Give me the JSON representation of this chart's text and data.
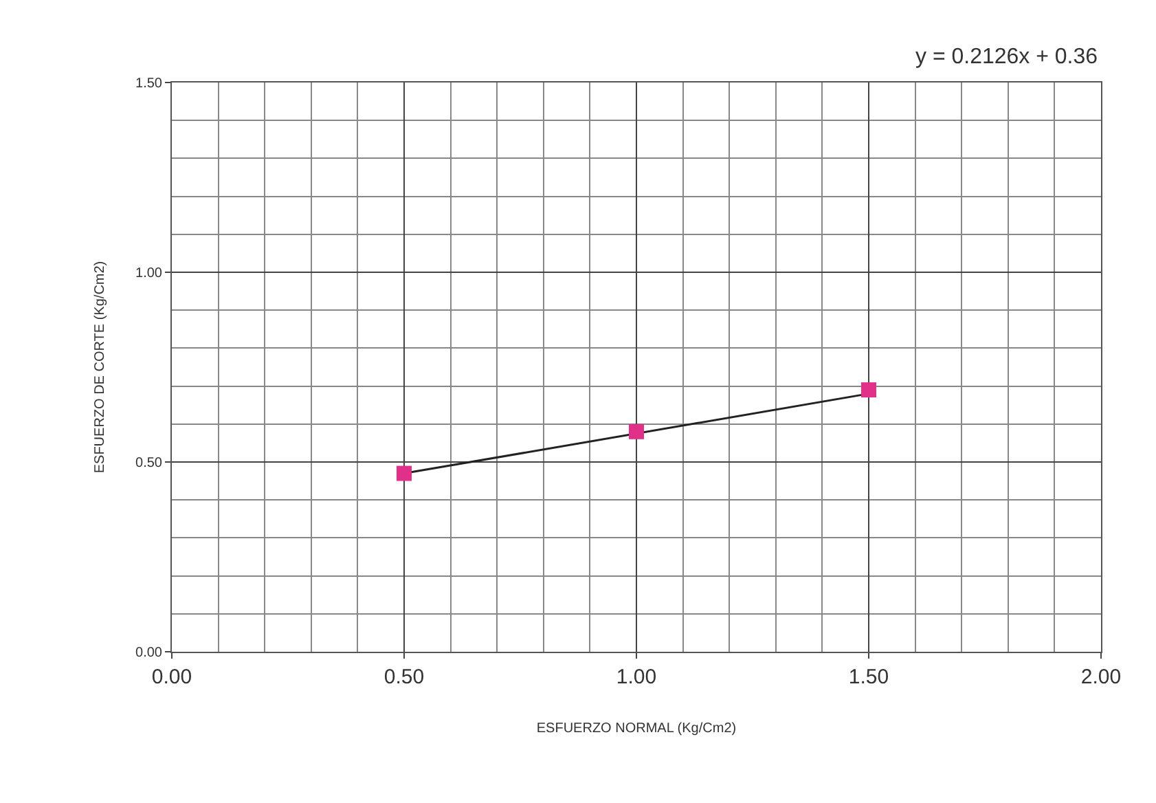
{
  "chart_data": {
    "type": "scatter",
    "xlabel": "ESFUERZO NORMAL (Kg/Cm2)",
    "ylabel": "ESFUERZO DE CORTE (Kg/Cm2)",
    "annotations": [
      "y = 0.2126x + 0.36"
    ],
    "x": [
      0.5,
      1.0,
      1.5
    ],
    "series": [
      {
        "type": "line",
        "color": "#222222",
        "x": [
          0.5,
          1.5
        ],
        "values": [
          0.47,
          0.68
        ],
        "marker": "none"
      },
      {
        "color": "#e0308a",
        "values": [
          0.47,
          0.58,
          0.69
        ],
        "marker": "square"
      }
    ],
    "xlim": [
      0,
      2
    ],
    "xticks": [
      {
        "value": 0,
        "label": "0.00"
      },
      {
        "value": 0.5,
        "label": "0.50"
      },
      {
        "value": 1,
        "label": "1.00"
      },
      {
        "value": 1.5,
        "label": "1.50"
      },
      {
        "value": 2,
        "label": "2.00"
      }
    ],
    "ylim": [
      0,
      1.5
    ],
    "yticks": [
      {
        "value": 0,
        "label": "0.00"
      },
      {
        "value": 0.5,
        "label": "0.50"
      },
      {
        "value": 1,
        "label": "1.00"
      },
      {
        "value": 1.5,
        "label": "1.50"
      }
    ],
    "grid": true
  }
}
